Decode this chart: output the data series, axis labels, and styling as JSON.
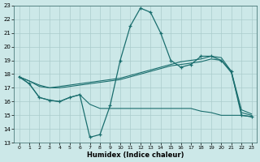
{
  "xlabel": "Humidex (Indice chaleur)",
  "bg_color": "#cce8e8",
  "grid_color": "#aacccc",
  "line_color": "#1a6e6e",
  "xlim": [
    -0.5,
    23.5
  ],
  "ylim": [
    13,
    23
  ],
  "xtick_labels": [
    "0",
    "1",
    "2",
    "3",
    "4",
    "5",
    "6",
    "7",
    "8",
    "9",
    "10",
    "11",
    "12",
    "13",
    "14",
    "15",
    "16",
    "17",
    "18",
    "19",
    "20",
    "21",
    "22",
    "23"
  ],
  "ytick_labels": [
    "13",
    "14",
    "15",
    "16",
    "17",
    "18",
    "19",
    "20",
    "21",
    "22",
    "23"
  ],
  "line1_x": [
    0,
    1,
    2,
    3,
    4,
    5,
    6,
    7,
    8,
    9,
    10,
    11,
    12,
    13,
    14,
    15,
    16,
    17,
    18,
    19,
    20,
    21,
    22,
    23
  ],
  "line1_y": [
    17.8,
    17.3,
    16.3,
    16.1,
    16.0,
    16.3,
    16.5,
    13.4,
    13.6,
    15.7,
    19.0,
    21.5,
    22.8,
    22.5,
    21.0,
    19.0,
    18.5,
    18.7,
    19.3,
    19.3,
    19.0,
    18.2,
    15.0,
    14.9
  ],
  "line2_x": [
    0,
    1,
    2,
    3,
    4,
    5,
    6,
    7,
    8,
    9,
    10,
    11,
    12,
    13,
    14,
    15,
    16,
    17,
    18,
    19,
    20,
    21,
    22,
    23
  ],
  "line2_y": [
    17.8,
    17.5,
    17.2,
    17.0,
    17.0,
    17.1,
    17.2,
    17.3,
    17.4,
    17.5,
    17.6,
    17.8,
    18.0,
    18.2,
    18.4,
    18.6,
    18.7,
    18.8,
    18.9,
    19.1,
    19.0,
    18.1,
    15.2,
    15.0
  ],
  "line3_x": [
    0,
    1,
    2,
    3,
    4,
    5,
    6,
    7,
    8,
    9,
    10,
    11,
    12,
    13,
    14,
    15,
    16,
    17,
    18,
    19,
    20,
    21,
    22,
    23
  ],
  "line3_y": [
    17.8,
    17.5,
    17.1,
    17.0,
    17.1,
    17.2,
    17.3,
    17.4,
    17.5,
    17.6,
    17.7,
    17.9,
    18.1,
    18.3,
    18.5,
    18.7,
    18.9,
    19.0,
    19.1,
    19.3,
    19.2,
    18.2,
    15.4,
    15.1
  ],
  "line4_x": [
    0,
    1,
    2,
    3,
    4,
    5,
    6,
    7,
    8,
    9,
    10,
    11,
    12,
    13,
    14,
    15,
    16,
    17,
    18,
    19,
    20,
    21,
    22,
    23
  ],
  "line4_y": [
    17.8,
    17.3,
    16.3,
    16.1,
    16.0,
    16.3,
    16.5,
    15.8,
    15.5,
    15.5,
    15.5,
    15.5,
    15.5,
    15.5,
    15.5,
    15.5,
    15.5,
    15.5,
    15.3,
    15.2,
    15.0,
    15.0,
    15.0,
    14.9
  ]
}
